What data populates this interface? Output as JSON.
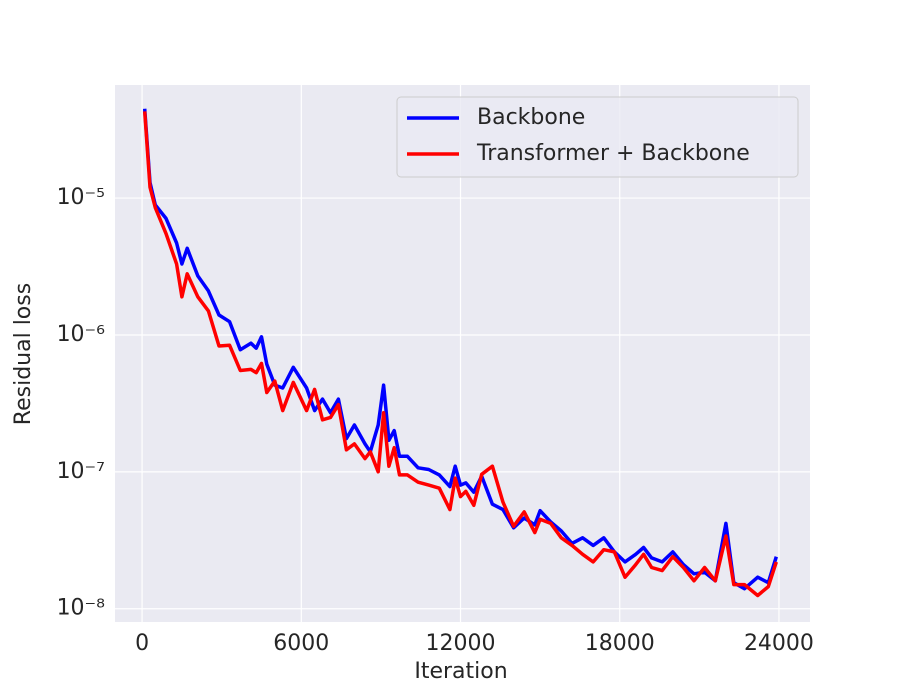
{
  "chart_data": {
    "type": "line",
    "xlabel": "Iteration",
    "ylabel": "Residual loss",
    "yscale": "log",
    "grid": true,
    "legend": "upper right",
    "xlim": [
      -1020,
      25170
    ],
    "ylim": [
      8e-09,
      6.7e-05
    ],
    "xticks": [
      0,
      6000,
      12000,
      18000,
      24000
    ],
    "yticks": [
      {
        "value": 1e-08,
        "label": "10⁻⁸"
      },
      {
        "value": 1e-07,
        "label": "10⁻⁷"
      },
      {
        "value": 1e-06,
        "label": "10⁻⁶"
      },
      {
        "value": 1e-05,
        "label": "10⁻⁵"
      }
    ],
    "x": [
      100,
      300,
      500,
      900,
      1300,
      1500,
      1700,
      2100,
      2500,
      2900,
      3300,
      3700,
      4100,
      4300,
      4500,
      4700,
      5000,
      5300,
      5700,
      6200,
      6500,
      6800,
      7100,
      7400,
      7700,
      8000,
      8400,
      8600,
      8900,
      9100,
      9300,
      9500,
      9700,
      10000,
      10400,
      10800,
      11200,
      11600,
      11800,
      12000,
      12200,
      12500,
      12800,
      13200,
      13600,
      14000,
      14400,
      14800,
      15000,
      15400,
      15800,
      16200,
      16600,
      17000,
      17400,
      17800,
      18200,
      18600,
      18900,
      19200,
      19600,
      20000,
      20400,
      20800,
      21200,
      21600,
      22000,
      22300,
      22700,
      23200,
      23600,
      23900
    ],
    "series": [
      {
        "name": "Backbone",
        "color": "#0000ff",
        "values": [
          4.5e-05,
          1.3e-05,
          8.9e-06,
          7.1e-06,
          4.7e-06,
          3.3e-06,
          4.3e-06,
          2.7e-06,
          2.1e-06,
          1.4e-06,
          1.25e-06,
          7.8e-07,
          8.7e-07,
          8e-07,
          9.7e-07,
          6.1e-07,
          4.3e-07,
          4.1e-07,
          5.8e-07,
          4.1e-07,
          2.8e-07,
          3.4e-07,
          2.7e-07,
          3.4e-07,
          1.75e-07,
          2.2e-07,
          1.6e-07,
          1.4e-07,
          2.2e-07,
          4.3e-07,
          1.7e-07,
          2e-07,
          1.3e-07,
          1.3e-07,
          1.07e-07,
          1.04e-07,
          9.5e-08,
          7.8e-08,
          1.1e-07,
          8e-08,
          8.3e-08,
          7.1e-08,
          9.3e-08,
          5.8e-08,
          5.3e-08,
          3.9e-08,
          4.6e-08,
          4.1e-08,
          5.2e-08,
          4.3e-08,
          3.7e-08,
          3e-08,
          3.3e-08,
          2.9e-08,
          3.3e-08,
          2.6e-08,
          2.2e-08,
          2.5e-08,
          2.8e-08,
          2.35e-08,
          2.2e-08,
          2.6e-08,
          2.1e-08,
          1.8e-08,
          1.85e-08,
          1.6e-08,
          4.2e-08,
          1.55e-08,
          1.4e-08,
          1.7e-08,
          1.55e-08,
          2.4e-08
        ]
      },
      {
        "name": "Transformer + Backbone",
        "color": "#ff0000",
        "values": [
          4.3e-05,
          1.2e-05,
          8.5e-06,
          5.5e-06,
          3.3e-06,
          1.9e-06,
          2.8e-06,
          1.9e-06,
          1.5e-06,
          8.3e-07,
          8.4e-07,
          5.5e-07,
          5.6e-07,
          5.3e-07,
          6.2e-07,
          3.8e-07,
          4.6e-07,
          2.8e-07,
          4.5e-07,
          2.8e-07,
          4e-07,
          2.4e-07,
          2.5e-07,
          3.1e-07,
          1.45e-07,
          1.6e-07,
          1.25e-07,
          1.4e-07,
          1e-07,
          2.7e-07,
          1.1e-07,
          1.5e-07,
          9.5e-08,
          9.5e-08,
          8.4e-08,
          8e-08,
          7.6e-08,
          5.3e-08,
          9e-08,
          6.6e-08,
          7.2e-08,
          5.7e-08,
          9.6e-08,
          1.1e-07,
          6e-08,
          4e-08,
          5.1e-08,
          3.6e-08,
          4.5e-08,
          4.2e-08,
          3.3e-08,
          2.9e-08,
          2.5e-08,
          2.2e-08,
          2.7e-08,
          2.6e-08,
          1.7e-08,
          2.1e-08,
          2.5e-08,
          2e-08,
          1.9e-08,
          2.4e-08,
          2e-08,
          1.6e-08,
          2e-08,
          1.6e-08,
          3.4e-08,
          1.5e-08,
          1.5e-08,
          1.25e-08,
          1.45e-08,
          2.2e-08
        ]
      }
    ]
  }
}
